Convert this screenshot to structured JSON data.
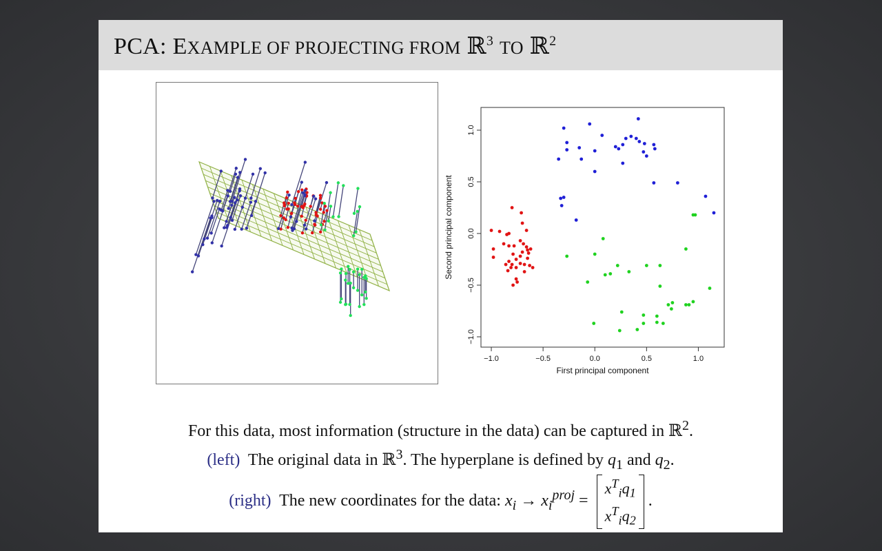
{
  "slide": {
    "title_prefix": "PCA: E",
    "title_sc": "XAMPLE OF PROJECTING FROM",
    "title_to": "TO",
    "title_bb1": "ℝ",
    "title_exp1": "3",
    "title_bb2": "ℝ",
    "title_exp2": "2"
  },
  "caption": {
    "line1_text": "For this data, most information (structure in the data) can be captured in ",
    "line1_bb": "ℝ",
    "line1_exp": "2",
    "line1_end": ".",
    "line2_side": "(left)",
    "line2_text_a": "The original data in ",
    "line2_bb": "ℝ",
    "line2_exp": "3",
    "line2_text_b": ". The hyperplane is defined by ",
    "line2_q1": "q",
    "line2_q1_sub": "1",
    "line2_and": " and ",
    "line2_q2": "q",
    "line2_q2_sub": "2",
    "line2_end": ".",
    "line3_side": "(right)",
    "line3_text": "The new coordinates for the data: ",
    "line3_xi": "x",
    "line3_xi_sub": "i",
    "line3_arrow": " → ",
    "line3_xproj": "x",
    "line3_xproj_sub": "i",
    "line3_xproj_sup": "proj",
    "line3_eq": " = ",
    "line3_m1a": "x",
    "line3_m1_sub": "i",
    "line3_m1_sup": "T",
    "line3_m1q": "q",
    "line3_m1q_sub": "1",
    "line3_m2a": "x",
    "line3_m2_sub": "i",
    "line3_m2_sup": "T",
    "line3_m2q": "q",
    "line3_m2q_sub": "2",
    "line3_end": "."
  },
  "chart_data": [
    {
      "type": "scatter",
      "title": "",
      "xlabel": "First principal component",
      "ylabel": "Second principal component",
      "xlim": [
        -1.1,
        1.25
      ],
      "ylim": [
        -1.1,
        1.22
      ],
      "xticks": [
        -1.0,
        -0.5,
        0.0,
        0.5,
        1.0
      ],
      "xtick_labels": [
        "−1.0",
        "−0.5",
        "0.0",
        "0.5",
        "1.0"
      ],
      "yticks": [
        -1.0,
        -0.5,
        0.0,
        0.5,
        1.0
      ],
      "ytick_labels": [
        "−1.0",
        "−0.5",
        "0.0",
        "0.5",
        "1.0"
      ],
      "series": [
        {
          "color": "#1f1fd6",
          "points": [
            [
              -0.3,
              1.02
            ],
            [
              -0.27,
              0.88
            ],
            [
              -0.27,
              0.81
            ],
            [
              -0.15,
              0.83
            ],
            [
              -0.05,
              1.06
            ],
            [
              0.07,
              0.95
            ],
            [
              0.0,
              0.8
            ],
            [
              0.2,
              0.84
            ],
            [
              0.23,
              0.82
            ],
            [
              0.27,
              0.86
            ],
            [
              0.3,
              0.92
            ],
            [
              0.35,
              0.94
            ],
            [
              0.4,
              0.92
            ],
            [
              0.43,
              0.89
            ],
            [
              0.42,
              1.11
            ],
            [
              0.47,
              0.79
            ],
            [
              0.48,
              0.87
            ],
            [
              0.5,
              0.75
            ],
            [
              0.57,
              0.86
            ],
            [
              0.58,
              0.82
            ],
            [
              0.57,
              0.49
            ],
            [
              0.8,
              0.49
            ],
            [
              0.27,
              0.68
            ],
            [
              0.0,
              0.6
            ],
            [
              -0.13,
              0.72
            ],
            [
              -0.35,
              0.72
            ],
            [
              -0.33,
              0.34
            ],
            [
              -0.3,
              0.35
            ],
            [
              -0.32,
              0.27
            ],
            [
              -0.18,
              0.13
            ],
            [
              1.07,
              0.36
            ],
            [
              1.15,
              0.2
            ]
          ]
        },
        {
          "color": "#e11414",
          "points": [
            [
              -1.0,
              0.03
            ],
            [
              -0.92,
              0.02
            ],
            [
              -0.85,
              -0.01
            ],
            [
              -0.83,
              0.0
            ],
            [
              -0.98,
              -0.15
            ],
            [
              -0.98,
              -0.23
            ],
            [
              -0.88,
              -0.1
            ],
            [
              -0.83,
              -0.12
            ],
            [
              -0.78,
              -0.12
            ],
            [
              -0.72,
              -0.07
            ],
            [
              -0.69,
              -0.1
            ],
            [
              -0.66,
              -0.13
            ],
            [
              -0.65,
              -0.16
            ],
            [
              -0.64,
              -0.19
            ],
            [
              -0.62,
              -0.15
            ],
            [
              -0.7,
              -0.18
            ],
            [
              -0.72,
              -0.22
            ],
            [
              -0.76,
              -0.25
            ],
            [
              -0.79,
              -0.2
            ],
            [
              -0.83,
              -0.27
            ],
            [
              -0.86,
              -0.3
            ],
            [
              -0.8,
              -0.3
            ],
            [
              -0.76,
              -0.33
            ],
            [
              -0.72,
              -0.29
            ],
            [
              -0.68,
              -0.3
            ],
            [
              -0.65,
              -0.24
            ],
            [
              -0.63,
              -0.31
            ],
            [
              -0.6,
              -0.33
            ],
            [
              -0.84,
              -0.36
            ],
            [
              -0.81,
              -0.33
            ],
            [
              -0.76,
              -0.44
            ],
            [
              -0.79,
              -0.5
            ],
            [
              -0.75,
              -0.47
            ],
            [
              -0.68,
              -0.37
            ],
            [
              -0.66,
              0.03
            ],
            [
              -0.7,
              0.1
            ],
            [
              -0.71,
              0.2
            ],
            [
              -0.8,
              0.25
            ]
          ]
        },
        {
          "color": "#1fd21f",
          "points": [
            [
              -0.27,
              -0.22
            ],
            [
              0.08,
              -0.05
            ],
            [
              0.0,
              -0.2
            ],
            [
              0.1,
              -0.4
            ],
            [
              0.15,
              -0.39
            ],
            [
              0.22,
              -0.31
            ],
            [
              0.33,
              -0.37
            ],
            [
              0.5,
              -0.31
            ],
            [
              0.63,
              -0.31
            ],
            [
              0.63,
              -0.51
            ],
            [
              0.75,
              -0.67
            ],
            [
              0.71,
              -0.69
            ],
            [
              0.74,
              -0.73
            ],
            [
              0.88,
              -0.69
            ],
            [
              0.91,
              -0.69
            ],
            [
              0.95,
              -0.66
            ],
            [
              0.88,
              -0.15
            ],
            [
              0.97,
              0.18
            ],
            [
              0.95,
              0.18
            ],
            [
              1.11,
              -0.53
            ],
            [
              -0.07,
              -0.47
            ],
            [
              -0.01,
              -0.87
            ],
            [
              0.26,
              -0.76
            ],
            [
              0.24,
              -0.94
            ],
            [
              0.41,
              -0.93
            ],
            [
              0.47,
              -0.79
            ],
            [
              0.47,
              -0.87
            ],
            [
              0.6,
              -0.8
            ],
            [
              0.6,
              -0.86
            ],
            [
              0.66,
              -0.87
            ]
          ]
        }
      ]
    }
  ]
}
